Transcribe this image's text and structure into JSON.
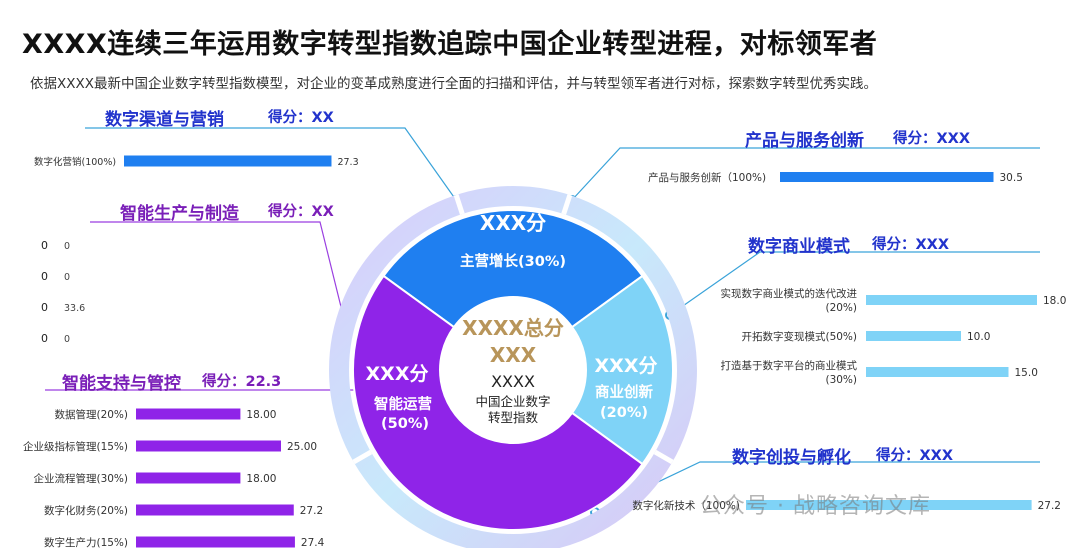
{
  "header": {
    "title": "XXXX连续三年运用数字转型指数追踪中国企业转型进程，对标领军者",
    "subtitle": "依据XXXX最新中国企业数字转型指数模型，对企业的变革成熟度进行全面的扫描和评估，并与转型领军者进行对标，探索数字转型优秀实践。"
  },
  "colors": {
    "blue": "#1f7ff0",
    "light_blue": "#7fd3f7",
    "purple": "#8f24e8",
    "section_blue": "#2233cc",
    "section_purple": "#7a1fb8",
    "gold": "#b8955a"
  },
  "sections": {
    "digital_channel": {
      "title": "数字渠道与营销",
      "score": "得分：XX"
    },
    "smart_production": {
      "title": "智能生产与制造",
      "score": "得分：XX"
    },
    "smart_support": {
      "title": "智能支持与管控",
      "score": "得分：22.3"
    },
    "product_service": {
      "title": "产品与服务创新",
      "score": "得分：XXX"
    },
    "business_model": {
      "title": "数字商业模式",
      "score": "得分：XXX"
    },
    "venture": {
      "title": "数字创投与孵化",
      "score": "得分：XXX"
    }
  },
  "center": {
    "total_line1": "XXXX总分",
    "total_line2": "XXX",
    "name_line1": "XXXX",
    "name_line2": "中国企业数字",
    "name_line3": "转型指数",
    "seg_growth_score": "XXX分",
    "seg_growth_label": "主营增长(30%)",
    "seg_ops_score": "XXX分",
    "seg_ops_label1": "智能运营",
    "seg_ops_label2": "(50%)",
    "seg_biz_score": "XXX分",
    "seg_biz_label1": "商业创新",
    "seg_biz_label2": "(20%)"
  },
  "watermark": "公众号 · 战略咨询文库",
  "chart_data": [
    {
      "id": "digital_channel",
      "type": "bar",
      "orientation": "horizontal",
      "categories": [
        "数字化营销(100%)"
      ],
      "values": [
        27.3
      ],
      "value_labels": [
        "27.3"
      ]
    },
    {
      "id": "smart_production",
      "type": "bar",
      "orientation": "horizontal",
      "axis_ticks": [
        "0",
        "0",
        "0",
        "0"
      ],
      "categories": [
        "0",
        "0",
        "33.6",
        "0"
      ],
      "values": [
        0,
        0,
        0,
        0
      ]
    },
    {
      "id": "smart_support",
      "type": "bar",
      "orientation": "horizontal",
      "categories": [
        "数据管理(20%)",
        "企业级指标管理(15%)",
        "企业流程管理(30%)",
        "数字化财务(20%)",
        "数字生产力(15%)"
      ],
      "values": [
        18.0,
        25.0,
        18.0,
        27.2,
        27.4
      ],
      "value_labels": [
        "18.00",
        "25.00",
        "18.00",
        "27.2",
        "27.4"
      ]
    },
    {
      "id": "product_service",
      "type": "bar",
      "orientation": "horizontal",
      "categories": [
        "产品与服务创新（100%)"
      ],
      "values": [
        30.5
      ],
      "value_labels": [
        "30.5"
      ]
    },
    {
      "id": "business_model",
      "type": "bar",
      "orientation": "horizontal",
      "categories": [
        [
          "实现数字商业模式的迭代改进",
          "(20%)"
        ],
        [
          "开拓数字变现模式(50%)"
        ],
        [
          "打造基于数字平台的商业模式",
          "(30%)"
        ]
      ],
      "values": [
        18.0,
        10.0,
        15.0
      ],
      "value_labels": [
        "18.0",
        "10.0",
        "15.0"
      ]
    },
    {
      "id": "venture",
      "type": "bar",
      "orientation": "horizontal",
      "categories": [
        "数字化新技术（100%)"
      ],
      "values": [
        27.2
      ],
      "value_labels": [
        "27.2"
      ]
    },
    {
      "id": "index_ring",
      "type": "pie",
      "title": "中国企业数字转型指数",
      "categories": [
        "主营增长",
        "商业创新",
        "智能运营"
      ],
      "values": [
        30,
        20,
        50
      ]
    }
  ]
}
